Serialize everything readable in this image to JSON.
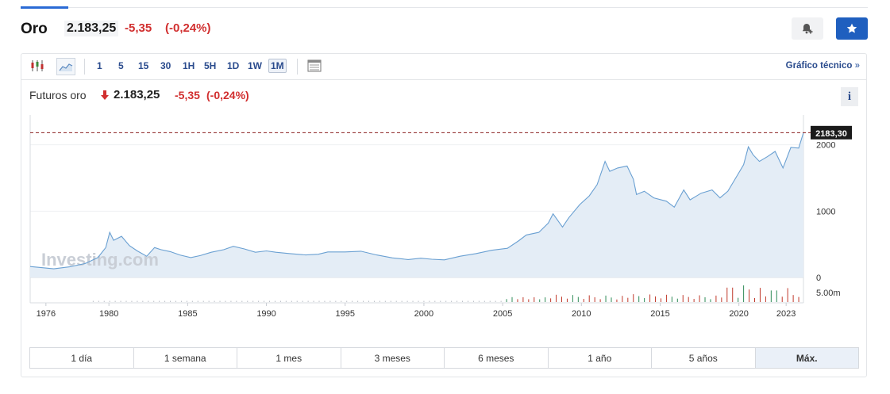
{
  "header": {
    "title": "Oro",
    "price": "2.183,25",
    "change": "-5,35",
    "change_pct": "(-0,24%)",
    "alert_icon": "bell-plus-icon",
    "favorite_icon": "star-icon"
  },
  "toolbar": {
    "chart_type_icons": [
      "candlestick-icon",
      "area-chart-icon"
    ],
    "timeframes": [
      "1",
      "5",
      "15",
      "30",
      "1H",
      "5H",
      "1D",
      "1W",
      "1M"
    ],
    "active_timeframe": "1M",
    "table_icon": "table-icon",
    "technical_link": "Gráfico técnico",
    "technical_chevron": "»"
  },
  "subheader": {
    "name": "Futuros oro",
    "arrow_icon": "arrow-down-icon",
    "price": "2.183,25",
    "change": "-5,35",
    "change_pct": "(-0,24%)",
    "info_label": "i"
  },
  "watermark": "Investing.com",
  "chart_data": {
    "type": "area",
    "x_ticks": [
      "1976",
      "1980",
      "1985",
      "1990",
      "1995",
      "2000",
      "2005",
      "2010",
      "2015",
      "2020",
      "2023"
    ],
    "y_ticks": [
      "0",
      "1000",
      "2000"
    ],
    "ylim": [
      0,
      2450
    ],
    "current_value_label": "2183,30",
    "current_value": 2183.3,
    "volume_label": "5.00m",
    "points": [
      [
        1975.0,
        165
      ],
      [
        1976.5,
        130
      ],
      [
        1977.5,
        160
      ],
      [
        1978.5,
        210
      ],
      [
        1979.3,
        300
      ],
      [
        1979.8,
        450
      ],
      [
        1980.05,
        680
      ],
      [
        1980.3,
        560
      ],
      [
        1980.8,
        620
      ],
      [
        1981.3,
        480
      ],
      [
        1981.8,
        400
      ],
      [
        1982.4,
        320
      ],
      [
        1982.9,
        450
      ],
      [
        1983.3,
        420
      ],
      [
        1983.9,
        390
      ],
      [
        1984.5,
        340
      ],
      [
        1985.2,
        300
      ],
      [
        1985.8,
        330
      ],
      [
        1986.5,
        380
      ],
      [
        1987.3,
        420
      ],
      [
        1987.9,
        470
      ],
      [
        1988.6,
        430
      ],
      [
        1989.3,
        380
      ],
      [
        1990.0,
        400
      ],
      [
        1990.6,
        380
      ],
      [
        1991.5,
        360
      ],
      [
        1992.5,
        340
      ],
      [
        1993.3,
        350
      ],
      [
        1993.9,
        385
      ],
      [
        1995.0,
        385
      ],
      [
        1996.0,
        395
      ],
      [
        1997.0,
        340
      ],
      [
        1998.0,
        295
      ],
      [
        1999.0,
        270
      ],
      [
        1999.8,
        290
      ],
      [
        2000.5,
        275
      ],
      [
        2001.3,
        265
      ],
      [
        2002.3,
        320
      ],
      [
        2003.3,
        360
      ],
      [
        2004.3,
        410
      ],
      [
        2005.3,
        440
      ],
      [
        2006.0,
        550
      ],
      [
        2006.5,
        640
      ],
      [
        2007.3,
        680
      ],
      [
        2007.9,
        820
      ],
      [
        2008.2,
        960
      ],
      [
        2008.8,
        760
      ],
      [
        2009.2,
        900
      ],
      [
        2009.9,
        1100
      ],
      [
        2010.5,
        1230
      ],
      [
        2011.0,
        1400
      ],
      [
        2011.5,
        1750
      ],
      [
        2011.8,
        1600
      ],
      [
        2012.3,
        1650
      ],
      [
        2012.9,
        1680
      ],
      [
        2013.3,
        1480
      ],
      [
        2013.5,
        1250
      ],
      [
        2014.0,
        1300
      ],
      [
        2014.6,
        1200
      ],
      [
        2015.4,
        1150
      ],
      [
        2015.9,
        1060
      ],
      [
        2016.5,
        1320
      ],
      [
        2016.9,
        1170
      ],
      [
        2017.6,
        1270
      ],
      [
        2018.3,
        1320
      ],
      [
        2018.8,
        1200
      ],
      [
        2019.3,
        1300
      ],
      [
        2019.8,
        1500
      ],
      [
        2020.3,
        1700
      ],
      [
        2020.6,
        1970
      ],
      [
        2020.9,
        1850
      ],
      [
        2021.3,
        1750
      ],
      [
        2021.8,
        1820
      ],
      [
        2022.3,
        1900
      ],
      [
        2022.8,
        1650
      ],
      [
        2023.3,
        1960
      ],
      [
        2023.8,
        1950
      ],
      [
        2024.1,
        2183
      ]
    ]
  },
  "ranges": [
    "1 día",
    "1 semana",
    "1 mes",
    "3 meses",
    "6 meses",
    "1 año",
    "5 años",
    "Máx."
  ],
  "active_range": "Máx."
}
